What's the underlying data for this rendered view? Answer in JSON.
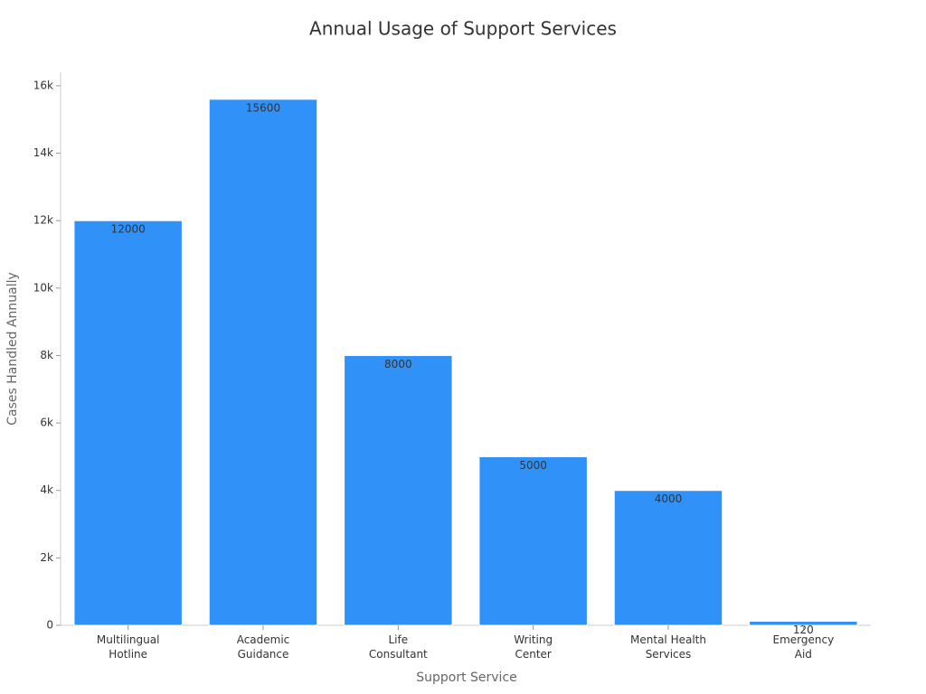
{
  "chart_data": {
    "type": "bar",
    "title": "Annual Usage of Support Services",
    "x_label": "Support Service",
    "y_label": "Cases Handled Annually",
    "categories": [
      "Multilingual\nHotline",
      "Academic\nGuidance",
      "Life\nConsultant",
      "Writing\nCenter",
      "Mental Health\nServices",
      "Emergency\nAid"
    ],
    "values": [
      12000,
      15600,
      8000,
      5000,
      4000,
      120
    ],
    "color": "#3092f8",
    "ylim": [
      0,
      16400
    ],
    "yticks": [
      0,
      {
        "value": 2000,
        "label": "2k"
      },
      {
        "value": 4000,
        "label": "4k"
      },
      {
        "value": 6000,
        "label": "6k"
      },
      {
        "value": 8000,
        "label": "8k"
      },
      {
        "value": 10000,
        "label": "10k"
      },
      {
        "value": 12000,
        "label": "12k"
      },
      {
        "value": 14000,
        "label": "14k"
      },
      {
        "value": 16000,
        "label": "16k"
      }
    ],
    "grid": false
  }
}
